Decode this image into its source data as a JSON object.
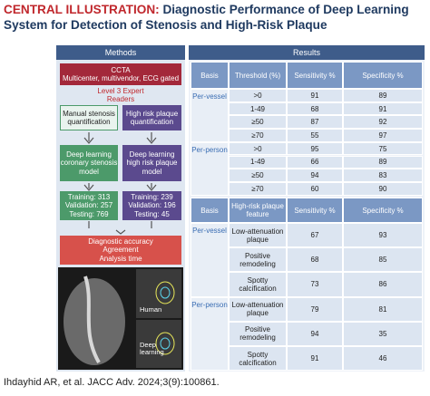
{
  "header": {
    "label": "CENTRAL ILLUSTRATION:",
    "title": "Diagnostic Performance of Deep Learning System for Detection of Stenosis and High-Risk Plaque"
  },
  "methods": {
    "title": "Methods",
    "ccta": "CCTA",
    "ccta_detail": "Multicenter, multivendor, ECG gated",
    "readers": "Level 3 Expert Readers",
    "stenosis_reference": "Manual stenosis quantification",
    "plaque_reference": "High risk plaque quantification",
    "stenosis_model": "Deep learning coronary stenosis model",
    "plaque_model": "Deep learning high risk plaque model",
    "stenosis_split": [
      "Training: 313",
      "Validation: 257",
      "Testing: 769"
    ],
    "plaque_split": [
      "Training: 239",
      "Validation: 196",
      "Testing: 45"
    ],
    "outcomes": [
      "Diagnostic accuracy",
      "Agreement",
      "Analysis time"
    ],
    "image_labels": [
      "Human",
      "Deep learning"
    ]
  },
  "results": {
    "title": "Results",
    "stenosis_table": {
      "columns": [
        "Basis",
        "Threshold (%)",
        "Sensitivity %",
        "Specificity %"
      ],
      "groups": [
        {
          "basis": "Per-vessel",
          "rows": [
            [
              ">0",
              91,
              89
            ],
            [
              "1-49",
              68,
              91
            ],
            [
              "≥50",
              87,
              92
            ],
            [
              "≥70",
              55,
              97
            ]
          ]
        },
        {
          "basis": "Per-person",
          "rows": [
            [
              ">0",
              95,
              75
            ],
            [
              "1-49",
              66,
              89
            ],
            [
              "≥50",
              94,
              83
            ],
            [
              "≥70",
              60,
              90
            ]
          ]
        }
      ]
    },
    "plaque_table": {
      "columns": [
        "Basis",
        "High-risk plaque feature",
        "Sensitivity %",
        "Specificity %"
      ],
      "groups": [
        {
          "basis": "Per-vessel",
          "rows": [
            [
              "Low-attenuation plaque",
              67,
              93
            ],
            [
              "Positive remodeling",
              68,
              85
            ],
            [
              "Spotty calcification",
              73,
              86
            ]
          ]
        },
        {
          "basis": "Per-person",
          "rows": [
            [
              "Low-attenuation plaque",
              79,
              81
            ],
            [
              "Positive remodeling",
              94,
              35
            ],
            [
              "Spotty calcification",
              91,
              46
            ]
          ]
        }
      ]
    }
  },
  "citation": "Ihdayhid AR, et al. JACC Adv. 2024;3(9):100861."
}
